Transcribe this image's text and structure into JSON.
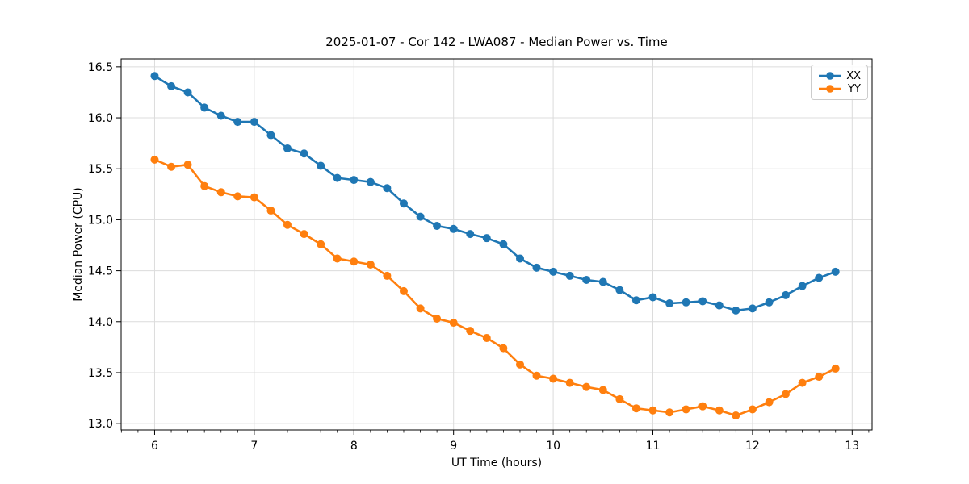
{
  "title": "2025-01-07 - Cor 142 - LWA087 - Median Power vs. Time",
  "chart_data": {
    "type": "line",
    "title": "2025-01-07 - Cor 142 - LWA087 - Median Power vs. Time",
    "xlabel": "UT Time (hours)",
    "ylabel": "Median Power (CPU)",
    "xlim": [
      5.664,
      13.2
    ],
    "ylim": [
      12.938,
      16.578
    ],
    "xticks": [
      6,
      7,
      8,
      9,
      10,
      11,
      12,
      13
    ],
    "yticks": [
      13.0,
      13.5,
      14.0,
      14.5,
      15.0,
      15.5,
      16.0,
      16.5
    ],
    "minor_tick_step_x": 0.16667,
    "grid": true,
    "grid_color": "#dcdcdc",
    "legend_position": "upper right",
    "x": [
      6.0,
      6.167,
      6.333,
      6.5,
      6.667,
      6.833,
      7.0,
      7.167,
      7.333,
      7.5,
      7.667,
      7.833,
      8.0,
      8.167,
      8.333,
      8.5,
      8.667,
      8.833,
      9.0,
      9.167,
      9.333,
      9.5,
      9.667,
      9.833,
      10.0,
      10.167,
      10.333,
      10.5,
      10.667,
      10.833,
      11.0,
      11.167,
      11.333,
      11.5,
      11.667,
      11.833,
      12.0,
      12.167,
      12.333,
      12.5,
      12.667,
      12.833
    ],
    "series": [
      {
        "name": "XX",
        "color": "#1f77b4",
        "values": [
          16.41,
          16.31,
          16.25,
          16.1,
          16.02,
          15.96,
          15.96,
          15.83,
          15.7,
          15.65,
          15.53,
          15.41,
          15.39,
          15.37,
          15.31,
          15.16,
          15.03,
          14.94,
          14.91,
          14.86,
          14.82,
          14.76,
          14.62,
          14.53,
          14.49,
          14.45,
          14.41,
          14.39,
          14.31,
          14.21,
          14.24,
          14.18,
          14.19,
          14.2,
          14.16,
          14.11,
          14.13,
          14.19,
          14.26,
          14.35,
          14.43,
          14.49
        ]
      },
      {
        "name": "YY",
        "color": "#ff7f0e",
        "values": [
          15.59,
          15.52,
          15.54,
          15.33,
          15.27,
          15.23,
          15.22,
          15.09,
          14.95,
          14.86,
          14.76,
          14.62,
          14.59,
          14.56,
          14.45,
          14.3,
          14.13,
          14.03,
          13.99,
          13.91,
          13.84,
          13.74,
          13.58,
          13.47,
          13.44,
          13.4,
          13.36,
          13.33,
          13.24,
          13.15,
          13.13,
          13.11,
          13.14,
          13.17,
          13.13,
          13.08,
          13.14,
          13.21,
          13.29,
          13.4,
          13.46,
          13.54
        ]
      }
    ]
  }
}
